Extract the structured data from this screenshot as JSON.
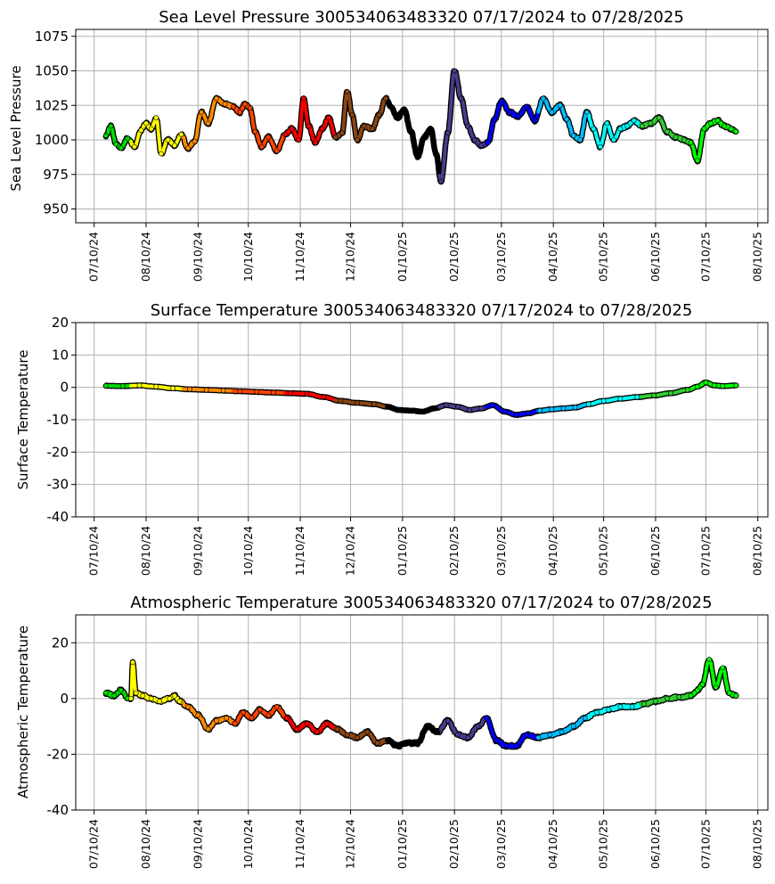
{
  "figure": {
    "x_ticks": [
      "07/10/24",
      "08/10/24",
      "09/10/24",
      "10/10/24",
      "11/10/24",
      "12/10/24",
      "01/10/25",
      "02/10/25",
      "03/10/25",
      "04/10/25",
      "05/10/25",
      "06/10/25",
      "07/10/25",
      "08/10/25"
    ],
    "x_tick_dates": [
      "2024-07-10",
      "2024-08-10",
      "2024-09-10",
      "2024-10-10",
      "2024-11-10",
      "2024-12-10",
      "2025-01-10",
      "2025-02-10",
      "2025-03-10",
      "2025-04-10",
      "2025-05-10",
      "2025-06-10",
      "2025-07-10",
      "2025-08-10"
    ],
    "xlim": [
      "2024-06-29",
      "2025-08-16"
    ],
    "colors": {
      "month_colors": [
        "#00dd00",
        "#ffff00",
        "#ff8c00",
        "#ff4500",
        "#ff0000",
        "#8b4513",
        "#000000",
        "#483d8b",
        "#0000ff",
        "#00bfff",
        "#00ffff",
        "#32cd32",
        "#00ff00"
      ],
      "outline": "#000000",
      "grid": "#b0b0b0"
    }
  },
  "chart_data": [
    {
      "type": "line",
      "title": "Sea Level Pressure 300534063483320  07/17/2024 to 07/28/2025",
      "ylabel": "Sea Level Pressure",
      "ylim": [
        940,
        1080
      ],
      "yticks": [
        950,
        975,
        1000,
        1025,
        1050,
        1075
      ],
      "grid": true,
      "series": [
        {
          "x": [
            "2024-07-17",
            "2024-07-20",
            "2024-07-23",
            "2024-07-26",
            "2024-07-30",
            "2024-08-03",
            "2024-08-07",
            "2024-08-10",
            "2024-08-13",
            "2024-08-16",
            "2024-08-19",
            "2024-08-23",
            "2024-08-27",
            "2024-08-31",
            "2024-09-04",
            "2024-09-08",
            "2024-09-12",
            "2024-09-16",
            "2024-09-21",
            "2024-09-26",
            "2024-10-01",
            "2024-10-05",
            "2024-10-08",
            "2024-10-11",
            "2024-10-14",
            "2024-10-18",
            "2024-10-22",
            "2024-10-27",
            "2024-11-01",
            "2024-11-05",
            "2024-11-09",
            "2024-11-12",
            "2024-11-15",
            "2024-11-19",
            "2024-11-23",
            "2024-11-27",
            "2024-12-01",
            "2024-12-05",
            "2024-12-08",
            "2024-12-11",
            "2024-12-14",
            "2024-12-18",
            "2024-12-23",
            "2024-12-27",
            "2024-12-31",
            "2025-01-03",
            "2025-01-07",
            "2025-01-11",
            "2025-01-15",
            "2025-01-19",
            "2025-01-23",
            "2025-01-27",
            "2025-01-30",
            "2025-02-02",
            "2025-02-06",
            "2025-02-10",
            "2025-02-14",
            "2025-02-18",
            "2025-02-22",
            "2025-02-26",
            "2025-03-02",
            "2025-03-06",
            "2025-03-10",
            "2025-03-15",
            "2025-03-20",
            "2025-03-25",
            "2025-03-30",
            "2025-04-04",
            "2025-04-09",
            "2025-04-14",
            "2025-04-18",
            "2025-04-22",
            "2025-04-26",
            "2025-04-30",
            "2025-05-04",
            "2025-05-08",
            "2025-05-12",
            "2025-05-16",
            "2025-05-20",
            "2025-05-24",
            "2025-05-28",
            "2025-06-02",
            "2025-06-07",
            "2025-06-12",
            "2025-06-17",
            "2025-06-22",
            "2025-06-27",
            "2025-07-01",
            "2025-07-05",
            "2025-07-09",
            "2025-07-13",
            "2025-07-17",
            "2025-07-21",
            "2025-07-25",
            "2025-07-28"
          ],
          "y": [
            1003,
            1010,
            997,
            994,
            1001,
            995,
            1007,
            1012,
            1008,
            1016,
            990,
            1000,
            996,
            1004,
            994,
            999,
            1020,
            1012,
            1030,
            1026,
            1024,
            1020,
            1026,
            1023,
            1006,
            995,
            1002,
            992,
            1004,
            1008,
            1000,
            1030,
            1010,
            998,
            1008,
            1016,
            1002,
            1005,
            1035,
            1018,
            1000,
            1010,
            1008,
            1018,
            1030,
            1024,
            1016,
            1022,
            1006,
            988,
            1002,
            1008,
            990,
            970,
            1005,
            1050,
            1030,
            1010,
            1000,
            996,
            998,
            1015,
            1028,
            1020,
            1017,
            1024,
            1014,
            1030,
            1020,
            1025,
            1015,
            1003,
            1000,
            1020,
            1008,
            995,
            1012,
            1000,
            1008,
            1010,
            1014,
            1010,
            1012,
            1016,
            1006,
            1002,
            1000,
            998,
            985,
            1008,
            1012,
            1014,
            1010,
            1008,
            1006
          ]
        }
      ]
    },
    {
      "type": "line",
      "title": "Surface Temperature 300534063483320  07/17/2024 to 07/28/2025",
      "ylabel": "Surface Temperature",
      "ylim": [
        -40,
        20
      ],
      "yticks": [
        -40,
        -30,
        -20,
        -10,
        0,
        10,
        20
      ],
      "grid": true,
      "series": [
        {
          "x": [
            "2024-07-17",
            "2024-07-27",
            "2024-08-06",
            "2024-08-16",
            "2024-08-26",
            "2024-09-05",
            "2024-09-15",
            "2024-09-25",
            "2024-10-05",
            "2024-10-15",
            "2024-10-25",
            "2024-11-04",
            "2024-11-14",
            "2024-11-24",
            "2024-12-04",
            "2024-12-14",
            "2024-12-24",
            "2025-01-01",
            "2025-01-08",
            "2025-01-15",
            "2025-01-22",
            "2025-01-29",
            "2025-02-05",
            "2025-02-12",
            "2025-02-19",
            "2025-02-26",
            "2025-03-05",
            "2025-03-12",
            "2025-03-19",
            "2025-03-26",
            "2025-04-02",
            "2025-04-09",
            "2025-04-16",
            "2025-04-23",
            "2025-05-01",
            "2025-05-10",
            "2025-05-20",
            "2025-05-30",
            "2025-06-09",
            "2025-06-19",
            "2025-06-29",
            "2025-07-05",
            "2025-07-10",
            "2025-07-15",
            "2025-07-20",
            "2025-07-28"
          ],
          "y": [
            0.5,
            0.4,
            0.6,
            0.2,
            -0.3,
            -0.6,
            -0.8,
            -1.0,
            -1.2,
            -1.4,
            -1.6,
            -1.8,
            -2.0,
            -3.0,
            -4.2,
            -4.8,
            -5.2,
            -6.0,
            -7.0,
            -7.2,
            -7.5,
            -6.5,
            -5.5,
            -6.0,
            -7.0,
            -6.5,
            -5.5,
            -7.5,
            -8.5,
            -8.0,
            -7.2,
            -6.8,
            -6.5,
            -6.2,
            -5.2,
            -4.2,
            -3.5,
            -3.0,
            -2.5,
            -1.8,
            -0.8,
            0.2,
            1.5,
            0.6,
            0.4,
            0.6
          ]
        }
      ]
    },
    {
      "type": "line",
      "title": "Atmospheric Temperature 300534063483320  07/17/2024 to 07/28/2025",
      "ylabel": "Atmospheric Temperature",
      "ylim": [
        -40,
        30
      ],
      "yticks": [
        -40,
        -20,
        0,
        20
      ],
      "grid": true,
      "series": [
        {
          "x": [
            "2024-07-17",
            "2024-07-22",
            "2024-07-26",
            "2024-07-30",
            "2024-08-01",
            "2024-08-02",
            "2024-08-04",
            "2024-08-08",
            "2024-08-13",
            "2024-08-18",
            "2024-08-24",
            "2024-08-27",
            "2024-08-30",
            "2024-09-04",
            "2024-09-10",
            "2024-09-16",
            "2024-09-21",
            "2024-09-27",
            "2024-10-02",
            "2024-10-07",
            "2024-10-12",
            "2024-10-17",
            "2024-10-22",
            "2024-10-27",
            "2024-11-02",
            "2024-11-08",
            "2024-11-14",
            "2024-11-20",
            "2024-11-26",
            "2024-12-02",
            "2024-12-08",
            "2024-12-14",
            "2024-12-20",
            "2024-12-26",
            "2025-01-01",
            "2025-01-07",
            "2025-01-13",
            "2025-01-19",
            "2025-01-25",
            "2025-01-31",
            "2025-02-06",
            "2025-02-12",
            "2025-02-18",
            "2025-02-24",
            "2025-03-01",
            "2025-03-07",
            "2025-03-13",
            "2025-03-19",
            "2025-03-25",
            "2025-04-01",
            "2025-04-08",
            "2025-04-15",
            "2025-04-22",
            "2025-04-29",
            "2025-05-06",
            "2025-05-13",
            "2025-05-20",
            "2025-05-27",
            "2025-06-03",
            "2025-06-10",
            "2025-06-17",
            "2025-06-24",
            "2025-07-01",
            "2025-07-05",
            "2025-07-08",
            "2025-07-12",
            "2025-07-16",
            "2025-07-20",
            "2025-07-24",
            "2025-07-28"
          ],
          "y": [
            2,
            1,
            3,
            0,
            0,
            13,
            2,
            1,
            0,
            -1,
            0,
            1,
            -1,
            -3,
            -6,
            -11,
            -8,
            -7,
            -9,
            -5,
            -7,
            -4,
            -6,
            -3,
            -7,
            -11,
            -9,
            -12,
            -9,
            -11,
            -13,
            -14,
            -12,
            -16,
            -15,
            -17,
            -16,
            -16,
            -10,
            -12,
            -8,
            -13,
            -14,
            -10,
            -7,
            -15,
            -17,
            -17,
            -13,
            -14,
            -13,
            -12,
            -10,
            -7,
            -5,
            -4,
            -3,
            -3,
            -2,
            -1,
            0,
            0.5,
            1,
            3,
            5,
            14,
            4,
            11,
            2,
            1
          ]
        }
      ]
    }
  ]
}
